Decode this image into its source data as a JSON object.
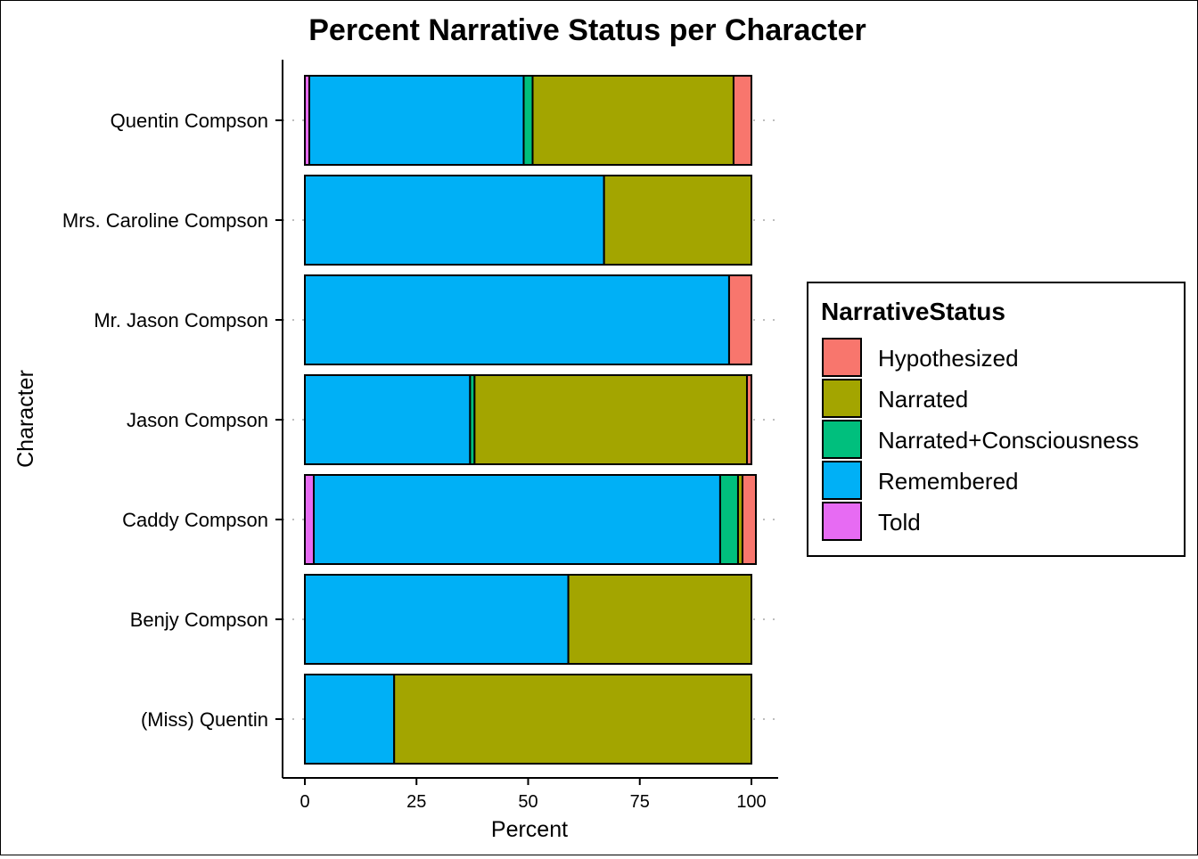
{
  "chart_data": {
    "type": "bar",
    "orientation": "horizontal",
    "stacked": true,
    "title": "Percent Narrative Status per Character",
    "xlabel": "Percent",
    "ylabel": "Character",
    "xlim": [
      0,
      100
    ],
    "xticks": [
      0,
      25,
      50,
      75,
      100
    ],
    "grid": "dotted horizontal lines at categories",
    "legend_position": "right",
    "legend_title": "NarrativeStatus",
    "categories": [
      "Quentin Compson",
      "Mrs. Caroline Compson",
      "Mr. Jason Compson",
      "Jason Compson",
      "Caddy Compson",
      "Benjy Compson",
      "(Miss) Quentin"
    ],
    "stack_order": [
      "Told",
      "Remembered",
      "Narrated+Consciousness",
      "Narrated",
      "Hypothesized"
    ],
    "series": [
      {
        "name": "Hypothesized",
        "color": "#F8766D",
        "values": [
          4,
          0,
          5,
          1,
          3,
          0,
          0
        ]
      },
      {
        "name": "Narrated",
        "color": "#A3A500",
        "values": [
          45,
          33,
          0,
          61,
          1,
          41,
          80
        ]
      },
      {
        "name": "Narrated+Consciousness",
        "color": "#00BF7D",
        "values": [
          2,
          0,
          0,
          1,
          4,
          0,
          0
        ]
      },
      {
        "name": "Remembered",
        "color": "#00B0F6",
        "values": [
          48,
          67,
          95,
          37,
          91,
          59,
          20
        ]
      },
      {
        "name": "Told",
        "color": "#E76BF3",
        "values": [
          1,
          0,
          0,
          0,
          2,
          0,
          0
        ]
      }
    ]
  }
}
